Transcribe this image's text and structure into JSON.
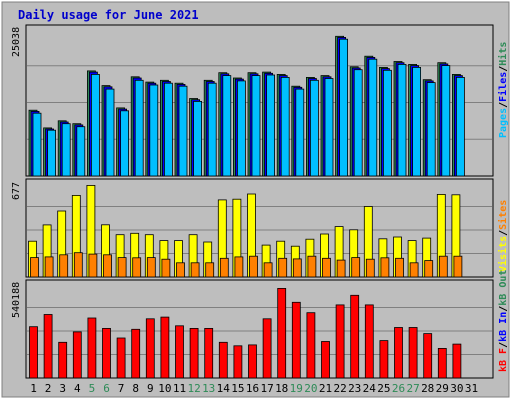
{
  "chart_data": {
    "type": "bar",
    "title": "Daily usage for June 2021",
    "categories": [
      "1",
      "2",
      "3",
      "4",
      "5",
      "6",
      "7",
      "8",
      "9",
      "10",
      "11",
      "12",
      "13",
      "14",
      "15",
      "16",
      "17",
      "18",
      "19",
      "20",
      "21",
      "22",
      "23",
      "24",
      "25",
      "26",
      "27",
      "28",
      "29",
      "30",
      "31"
    ],
    "weekend_days": [
      "5",
      "6",
      "12",
      "13",
      "19",
      "20",
      "26",
      "27"
    ],
    "colors": {
      "background": "#ffffff",
      "frame": "#bdbdbd",
      "panel": "#bebebe",
      "grid": "#808080",
      "pages": "#00bfff",
      "files": "#0000ff",
      "hits": "#2e8b57",
      "visits": "#ffff00",
      "sites": "#ff8000",
      "kb_out": "#2e8b57",
      "kb_in": "#0000ff",
      "kb_f": "#ff0000",
      "weekday_label": "#000000",
      "weekend_label": "#2e8b57",
      "title": "#0000cc"
    },
    "panels": [
      {
        "id": "top",
        "max_label": "25038",
        "ylim": [
          0,
          25038
        ],
        "legend": [
          {
            "text": "Pages",
            "color": "#00bfff"
          },
          {
            "text": "/",
            "color": "#000000"
          },
          {
            "text": "Files",
            "color": "#0000ff"
          },
          {
            "text": "/",
            "color": "#000000"
          },
          {
            "text": "Hits",
            "color": "#2e8b57"
          }
        ],
        "series": [
          {
            "name": "Hits",
            "color": "#2e8b57",
            "values": [
              11200,
              8200,
              9400,
              8900,
              17900,
              15400,
              11600,
              16900,
              16000,
              16300,
              15800,
              13200,
              16300,
              17600,
              16700,
              17600,
              17700,
              17300,
              15300,
              16800,
              17100,
              23800,
              18600,
              20400,
              18500,
              19500,
              19000,
              16400,
              19300,
              17300,
              0
            ]
          },
          {
            "name": "Files",
            "color": "#0000ff",
            "values": [
              11000,
              8000,
              9200,
              8700,
              17700,
              15200,
              11400,
              16700,
              15800,
              16100,
              15600,
              13000,
              16100,
              17400,
              16500,
              17400,
              17500,
              17100,
              15100,
              16600,
              16900,
              23600,
              18400,
              20200,
              18300,
              19300,
              18800,
              16200,
              19100,
              17100,
              0
            ]
          },
          {
            "name": "Pages",
            "color": "#00bfff",
            "values": [
              10700,
              7800,
              8900,
              8400,
              17300,
              14800,
              11100,
              16300,
              15500,
              15800,
              15300,
              12700,
              15800,
              17100,
              16200,
              17100,
              17200,
              16800,
              14800,
              16300,
              16600,
              23300,
              18100,
              19900,
              18000,
              19000,
              18500,
              15900,
              18800,
              16800,
              0
            ]
          }
        ]
      },
      {
        "id": "middle",
        "max_label": "677",
        "ylim": [
          0,
          677
        ],
        "legend": [
          {
            "text": "Visits",
            "color": "#ffff00"
          },
          {
            "text": "/",
            "color": "#000000"
          },
          {
            "text": "Sites",
            "color": "#ff8000"
          }
        ],
        "series": [
          {
            "name": "Visits",
            "color": "#ffff00",
            "values": [
              258,
              375,
              475,
              588,
              660,
              376,
              305,
              315,
              305,
              262,
              262,
              305,
              252,
              555,
              560,
              598,
              230,
              258,
              222,
              272,
              310,
              363,
              340,
              508,
              275,
              288,
              262,
              280,
              595,
              592,
              0
            ]
          },
          {
            "name": "Sites",
            "color": "#ff8000",
            "values": [
              140,
              145,
              160,
              175,
              165,
              160,
              140,
              138,
              140,
              128,
              102,
              102,
              102,
              135,
              145,
              150,
              102,
              135,
              130,
              150,
              135,
              122,
              140,
              128,
              138,
              135,
              102,
              118,
              150,
              150,
              0
            ]
          }
        ]
      },
      {
        "id": "bottom",
        "max_label": "540188",
        "ylim": [
          0,
          540188
        ],
        "legend": [
          {
            "text": "kB F",
            "color": "#ff0000"
          },
          {
            "text": "/",
            "color": "#000000"
          },
          {
            "text": "kB In",
            "color": "#0000ff"
          },
          {
            "text": "/",
            "color": "#000000"
          },
          {
            "text": "kB Out",
            "color": "#2e8b57"
          }
        ],
        "series": [
          {
            "name": "kB F",
            "color": "#ff0000",
            "values": [
              295000,
              365000,
              205000,
              265000,
              345000,
              285000,
              230000,
              280000,
              340000,
              350000,
              300000,
              285000,
              285000,
              205000,
              185000,
              190000,
              340000,
              515000,
              435000,
              375000,
              210000,
              420000,
              475000,
              420000,
              215000,
              290000,
              290000,
              255000,
              170000,
              195000,
              0
            ]
          }
        ]
      }
    ]
  }
}
